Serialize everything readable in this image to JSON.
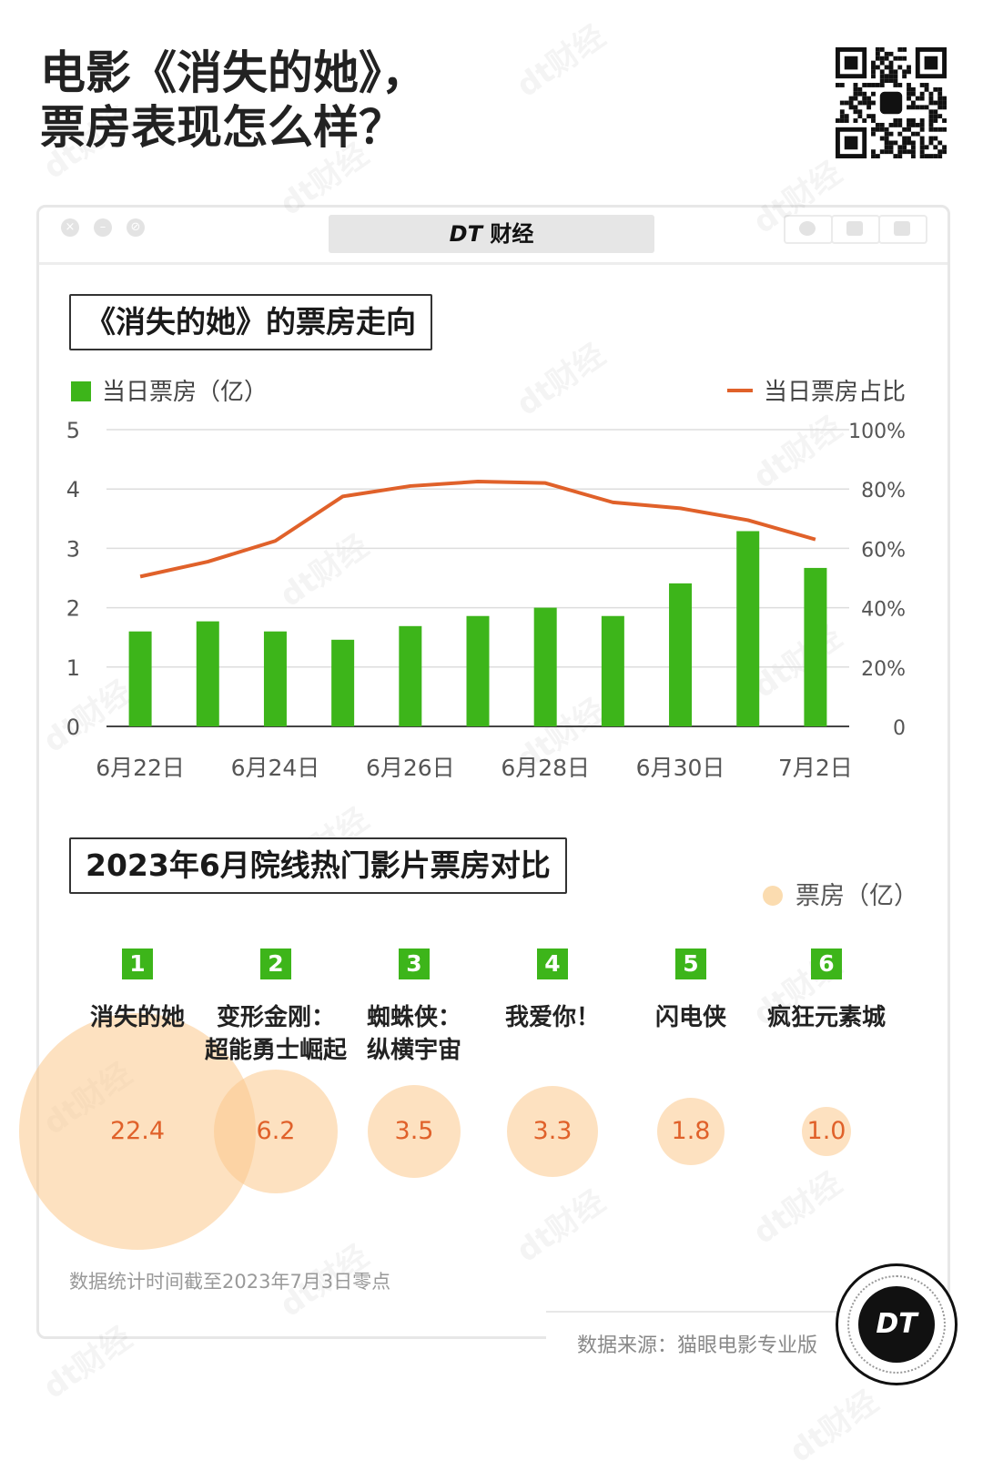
{
  "headline": {
    "line1": "电影《消失的她》，",
    "line2": "票房表现怎么样？"
  },
  "window": {
    "brand": "DT 财经",
    "brand_dt": "DT",
    "brand_cn": "财经"
  },
  "section1": {
    "title": "《消失的她》的票房走向"
  },
  "section2": {
    "title": "2023年6月院线热门影片票房对比",
    "legend": "票房（亿）"
  },
  "note": "数据统计时间截至2023年7月3日零点",
  "source": "数据来源：猫眼电影专业版",
  "badge": "DT",
  "watermark": "dt财经",
  "colors": {
    "bar": "#3db51a",
    "line": "#e0612a",
    "bubble": "#fcc88c",
    "value": "#e0612a"
  },
  "chart_data": [
    {
      "type": "bar",
      "title": "《消失的她》的票房走向",
      "categories": [
        "6月22日",
        "6月23日",
        "6月24日",
        "6月25日",
        "6月26日",
        "6月27日",
        "6月28日",
        "6月29日",
        "6月30日",
        "7月1日",
        "7月2日"
      ],
      "x_tick_labels": [
        "6月22日",
        "6月24日",
        "6月26日",
        "6月28日",
        "6月30日",
        "7月2日"
      ],
      "series": [
        {
          "name": "当日票房（亿）",
          "type": "bar",
          "axis": "left",
          "values": [
            1.6,
            1.77,
            1.6,
            1.46,
            1.69,
            1.86,
            2.0,
            1.86,
            2.41,
            3.29,
            2.67
          ]
        },
        {
          "name": "当日票房占比",
          "type": "line",
          "axis": "right",
          "unit": "%",
          "values": [
            50.5,
            55.5,
            62.5,
            77.5,
            81,
            82.5,
            82,
            75.5,
            73.5,
            69.5,
            63
          ]
        }
      ],
      "ylim_left": [
        0,
        5
      ],
      "yticks_left": [
        "0",
        "1",
        "2",
        "3",
        "4",
        "5"
      ],
      "ylim_right": [
        0,
        100
      ],
      "yticks_right": [
        "0",
        "20%",
        "40%",
        "60%",
        "80%",
        "100%"
      ],
      "grid": true,
      "legend": "top"
    },
    {
      "type": "bubble",
      "title": "2023年6月院线热门影片票房对比",
      "legend": "票房（亿）",
      "items": [
        {
          "rank": "1",
          "name_lines": [
            "消失的她"
          ],
          "value": 22.4,
          "label": "22.4"
        },
        {
          "rank": "2",
          "name_lines": [
            "变形金刚：",
            "超能勇士崛起"
          ],
          "value": 6.2,
          "label": "6.2"
        },
        {
          "rank": "3",
          "name_lines": [
            "蜘蛛侠：",
            "纵横宇宙"
          ],
          "value": 3.5,
          "label": "3.5"
        },
        {
          "rank": "4",
          "name_lines": [
            "我爱你！"
          ],
          "value": 3.3,
          "label": "3.3"
        },
        {
          "rank": "5",
          "name_lines": [
            "闪电侠"
          ],
          "value": 1.8,
          "label": "1.8"
        },
        {
          "rank": "6",
          "name_lines": [
            "疯狂元素城"
          ],
          "value": 1.0,
          "label": "1.0"
        }
      ]
    }
  ]
}
